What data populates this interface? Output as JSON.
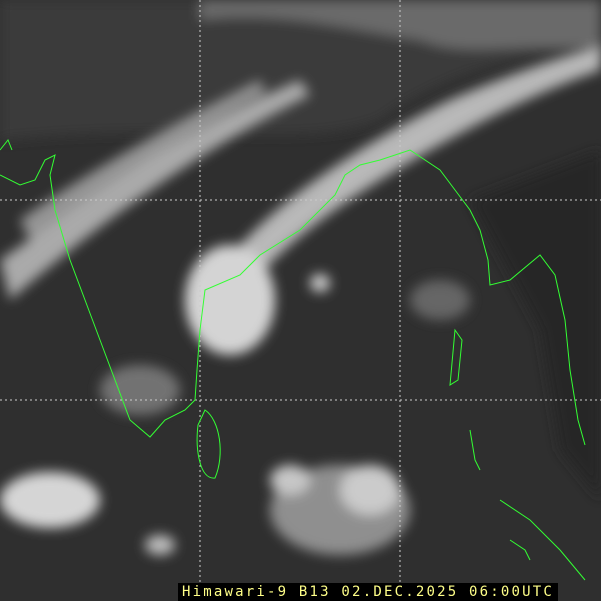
{
  "image": {
    "caption": "Himawari-9 B13 02.DEC.2025 06:00UTC",
    "colors": {
      "coastline": "#33ff33",
      "grid": "#cccccc",
      "caption_text": "#ffff88",
      "caption_bg": "#000000"
    }
  }
}
